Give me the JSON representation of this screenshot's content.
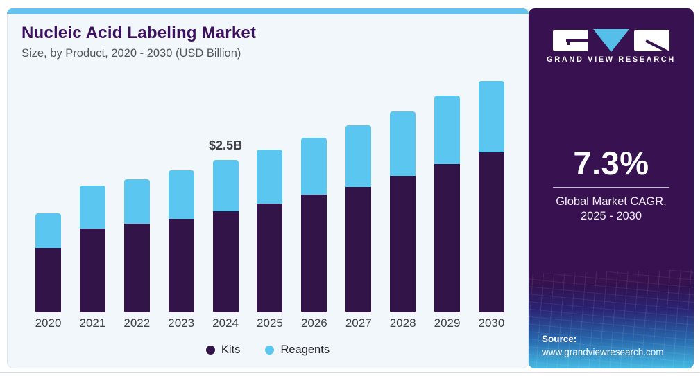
{
  "header": {
    "title": "Nucleic Acid Labeling Market",
    "subtitle": "Size, by Product, 2020 - 2030 (USD Billion)"
  },
  "chart_data": {
    "type": "bar",
    "stacked": true,
    "title": "Nucleic Acid Labeling Market Size, by Product, 2020 - 2030 (USD Billion)",
    "xlabel": "",
    "ylabel": "USD Billion",
    "ylim": [
      0,
      3.85
    ],
    "grid": false,
    "legend_position": "bottom",
    "categories": [
      "2020",
      "2021",
      "2022",
      "2023",
      "2024",
      "2025",
      "2026",
      "2027",
      "2028",
      "2029",
      "2030"
    ],
    "series": [
      {
        "name": "Kits",
        "color": "#321448",
        "values": [
          1.06,
          1.38,
          1.45,
          1.53,
          1.66,
          1.78,
          1.93,
          2.06,
          2.24,
          2.43,
          2.63
        ]
      },
      {
        "name": "Reagents",
        "color": "#5bc6ef",
        "values": [
          0.57,
          0.71,
          0.73,
          0.79,
          0.84,
          0.89,
          0.93,
          1.01,
          1.06,
          1.12,
          1.17
        ]
      }
    ],
    "totals": [
      1.63,
      2.09,
      2.18,
      2.32,
      2.5,
      2.67,
      2.86,
      3.07,
      3.3,
      3.55,
      3.8
    ],
    "annotations": [
      {
        "category": "2024",
        "text": "$2.5B"
      }
    ]
  },
  "legend": [
    {
      "label": "Kits",
      "color": "#321448"
    },
    {
      "label": "Reagents",
      "color": "#5bc6ef"
    }
  ],
  "panel": {
    "brand": "GRAND VIEW RESEARCH",
    "cagr_value": "7.3%",
    "cagr_label_line1": "Global Market CAGR,",
    "cagr_label_line2": "2025 - 2030",
    "source_label": "Source:",
    "source_url": "www.grandviewresearch.com"
  },
  "colors": {
    "card_bg": "#f1f7fa",
    "top_stripe": "#62c4ec",
    "panel_bg": "#371150",
    "logo_triangle": "#56bfe9",
    "title_text": "#3d1060",
    "subtitle_text": "#54575c",
    "axis_label_text": "#3f4148",
    "annotation_text": "#3f4045"
  }
}
